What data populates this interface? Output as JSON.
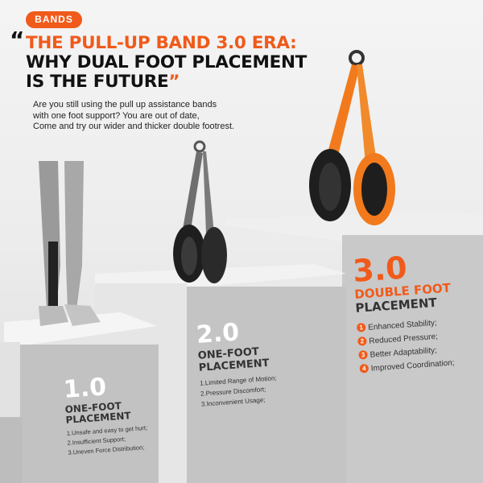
{
  "badge": "BANDS",
  "title": {
    "line1": "THE PULL-UP BAND 3.0 ERA:",
    "line2": "WHY DUAL FOOT PLACEMENT",
    "line3": "IS THE FUTURE",
    "open_quote": "“",
    "close_quote": "”"
  },
  "intro": [
    "Are you still using the pull up assistance bands",
    "with one foot support? You are out of date,",
    "Come and try our wider and thicker double footrest."
  ],
  "colors": {
    "accent": "#f05a1a",
    "band_gray": "#6e6e6e",
    "pad_black": "#1e1e1e"
  },
  "stage1": {
    "version": "1.0",
    "sub1": "ONE-FOOT",
    "sub2": "PLACEMENT",
    "items": [
      "1.Unsafe and easy to get hurt;",
      "2.Insufficient Support;",
      "3.Uneven Force Distribution;"
    ]
  },
  "stage2": {
    "version": "2.0",
    "sub1": "ONE-FOOT",
    "sub2": "PLACEMENT",
    "items": [
      "1.Limited Range of Motion;",
      "2.Pressure Discomfort;",
      "3.Inconvenient Usage;"
    ]
  },
  "stage3": {
    "version": "3.0",
    "sub1": "DOUBLE FOOT",
    "sub2": "PLACEMENT",
    "items": [
      {
        "n": "1",
        "t": "Enhanced Stability;"
      },
      {
        "n": "2",
        "t": "Reduced Pressure;"
      },
      {
        "n": "3",
        "t": "Better Adaptability;"
      },
      {
        "n": "4",
        "t": "Improved Coordination;"
      }
    ]
  }
}
